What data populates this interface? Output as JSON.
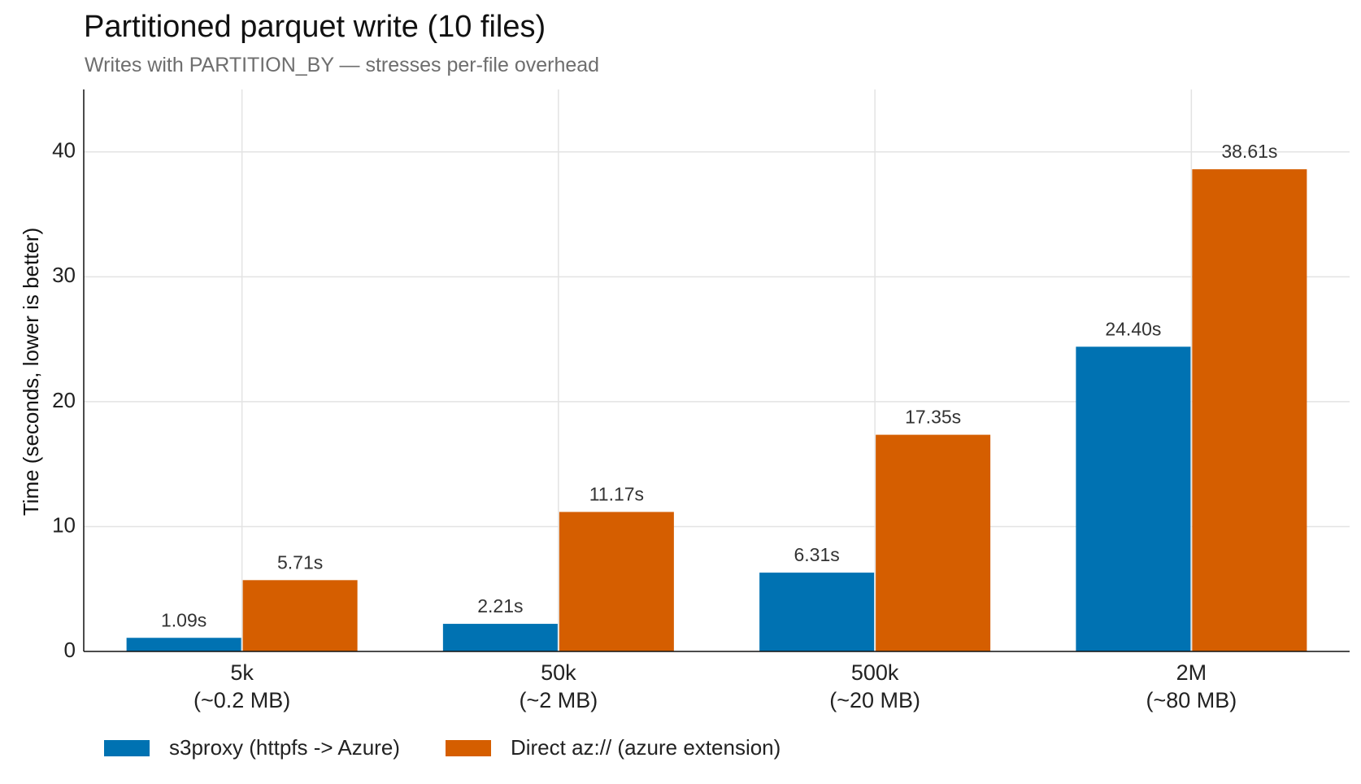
{
  "title": "Partitioned parquet write (10 files)",
  "subtitle": "Writes with PARTITION_BY — stresses per-file overhead",
  "chart_data": {
    "type": "bar",
    "title": "Partitioned parquet write (10 files)",
    "subtitle": "Writes with PARTITION_BY — stresses per-file overhead",
    "ylabel": "Time (seconds, lower is better)",
    "xlabel": "",
    "ylim": [
      0,
      45
    ],
    "yticks": [
      0,
      10,
      20,
      30,
      40
    ],
    "grid": true,
    "legend_position": "bottom-left",
    "categories": [
      [
        "5k",
        "(~0.2 MB)"
      ],
      [
        "50k",
        "(~2 MB)"
      ],
      [
        "500k",
        "(~20 MB)"
      ],
      [
        "2M",
        "(~80 MB)"
      ]
    ],
    "series": [
      {
        "name": "s3proxy (httpfs -> Azure)",
        "color": "#0072b2",
        "values": [
          1.09,
          2.21,
          6.31,
          24.4
        ],
        "labels": [
          "1.09s",
          "2.21s",
          "6.31s",
          "24.40s"
        ]
      },
      {
        "name": "Direct az:// (azure extension)",
        "color": "#d55e00",
        "values": [
          5.71,
          11.17,
          17.35,
          38.61
        ],
        "labels": [
          "5.71s",
          "11.17s",
          "17.35s",
          "38.61s"
        ]
      }
    ]
  }
}
